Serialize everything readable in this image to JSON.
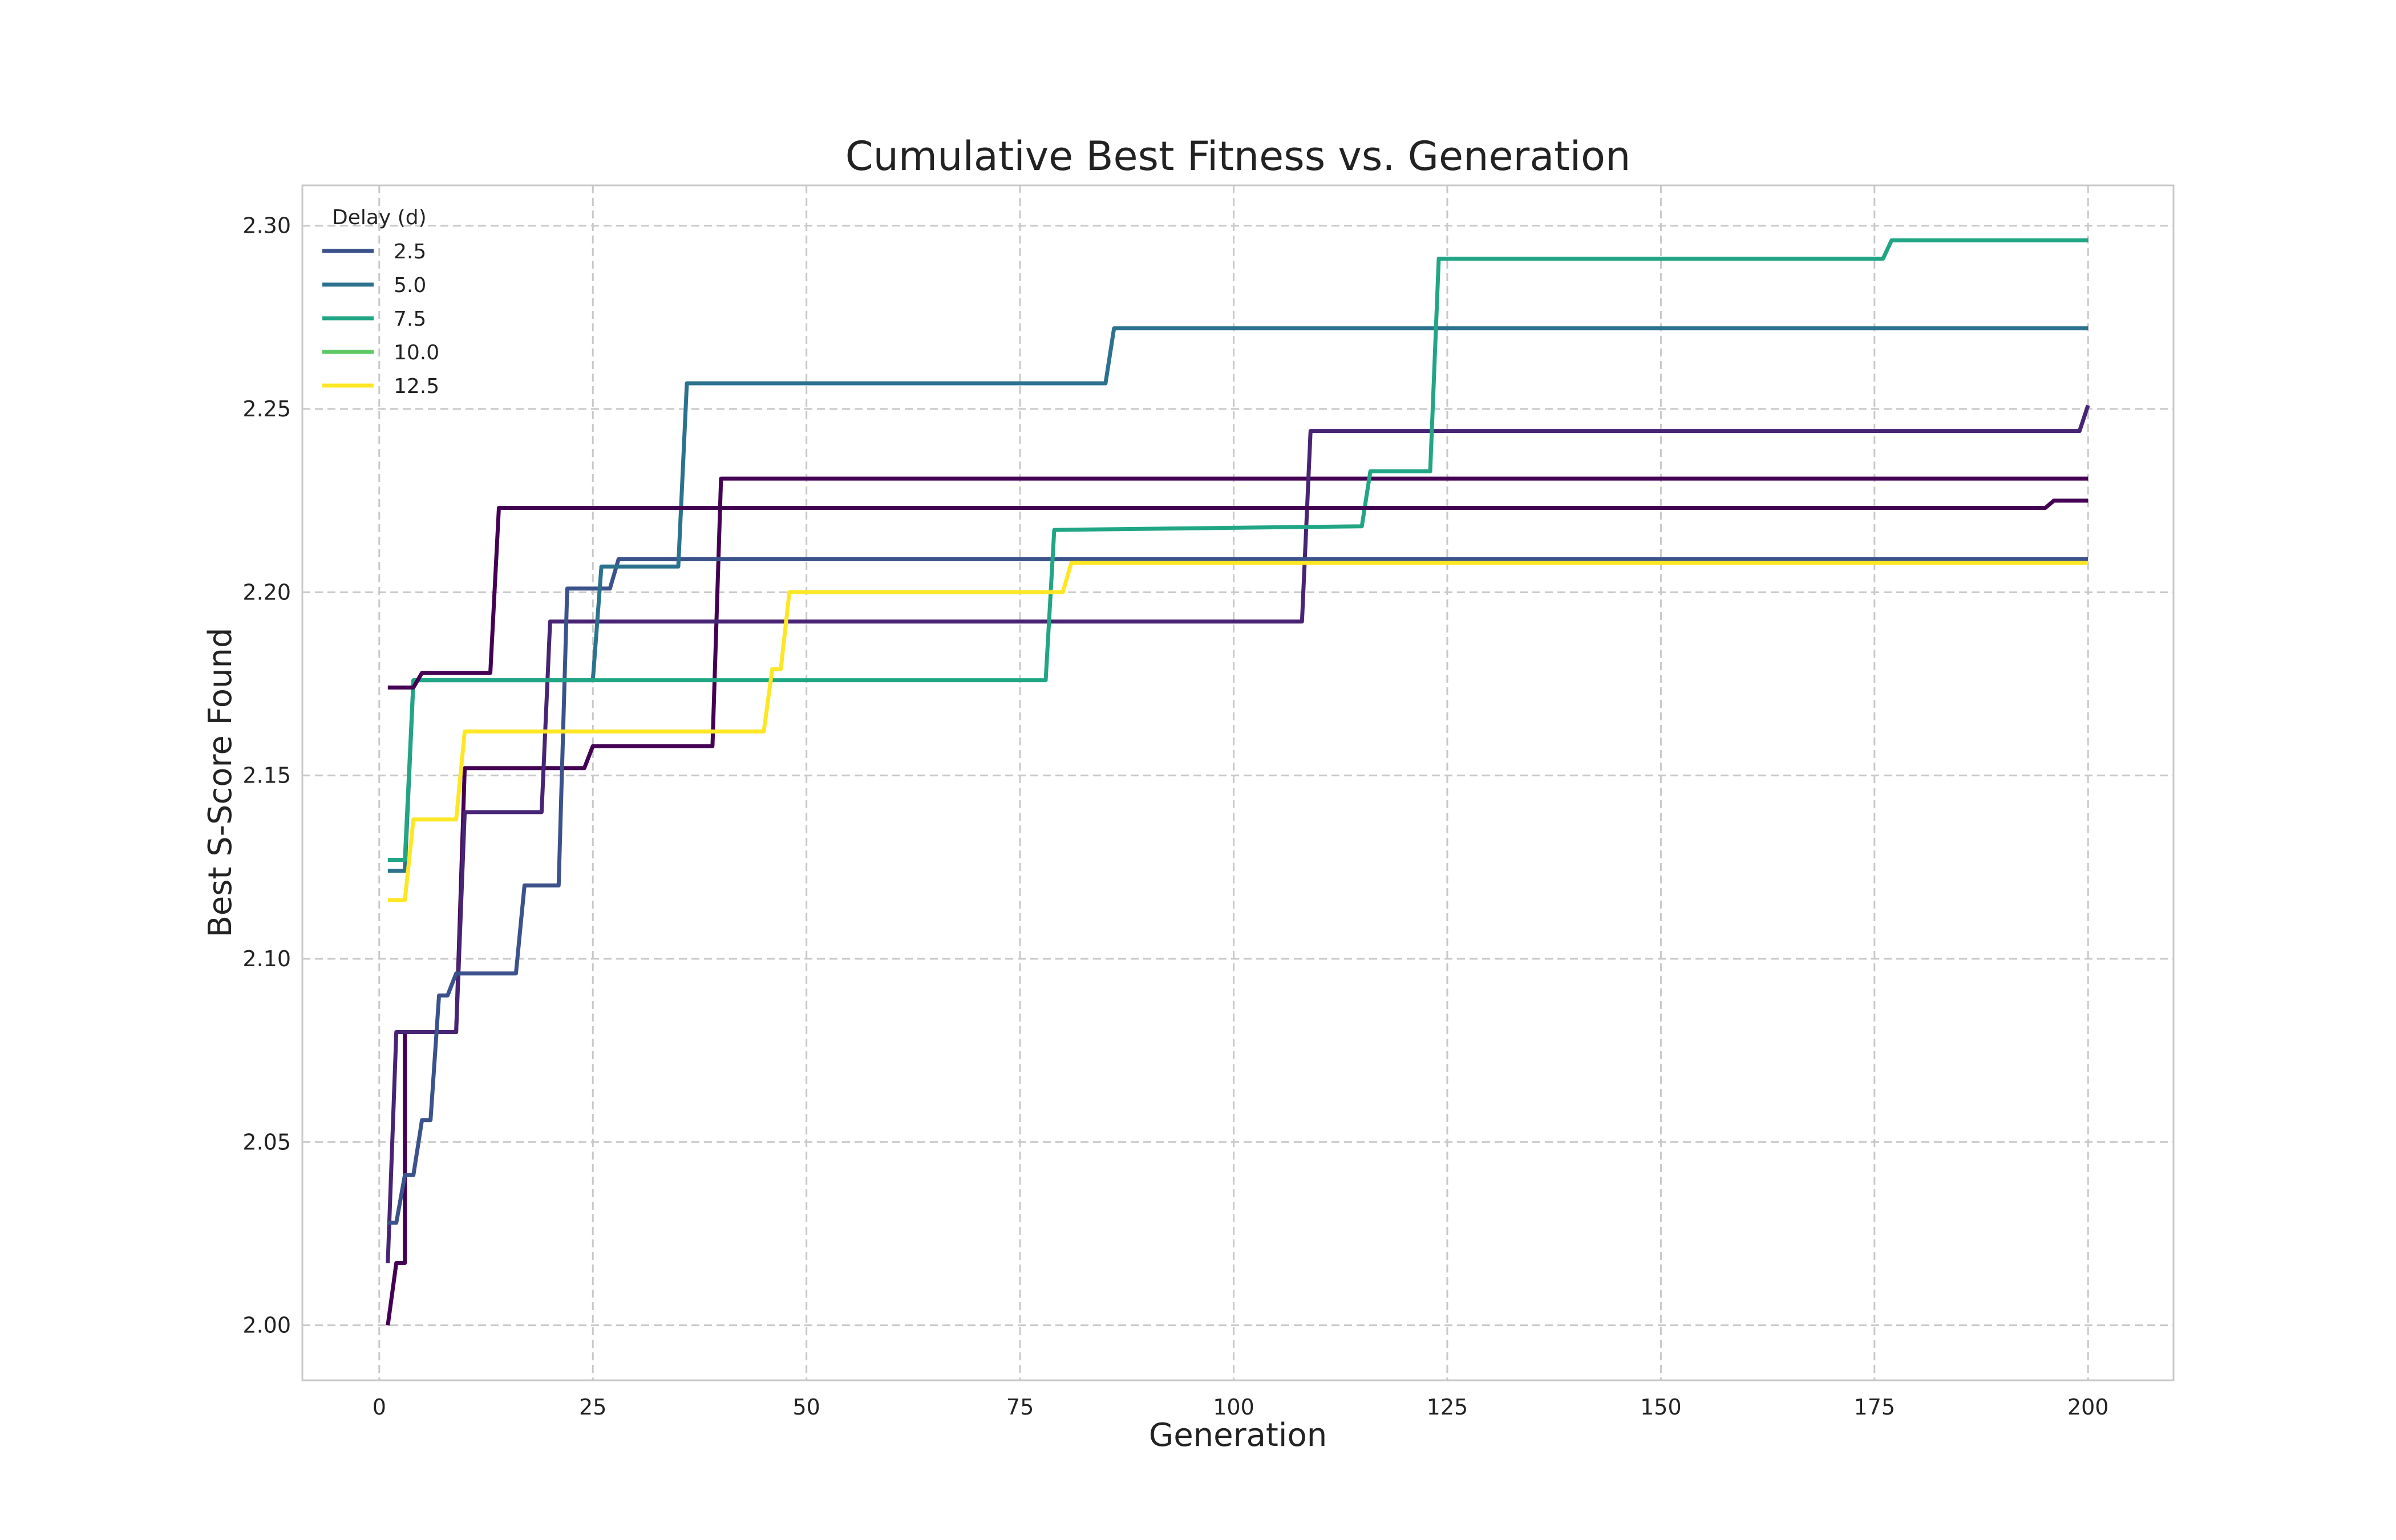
{
  "chart_data": {
    "type": "line",
    "title": "Cumulative Best Fitness vs. Generation",
    "xlabel": "Generation",
    "ylabel": "Best S-Score Found",
    "xlim": [
      -9,
      210
    ],
    "ylim": [
      1.985,
      2.311
    ],
    "xticks": [
      0,
      25,
      50,
      75,
      100,
      125,
      150,
      175,
      200
    ],
    "yticks": [
      2.0,
      2.05,
      2.1,
      2.15,
      2.2,
      2.25,
      2.3
    ],
    "grid": true,
    "legend": {
      "title": "Delay (d)",
      "placement": "top-left",
      "entries": [
        {
          "label": "2.5",
          "color": "#3b528b"
        },
        {
          "label": "5.0",
          "color": "#2c728e"
        },
        {
          "label": "7.5",
          "color": "#21a685"
        },
        {
          "label": "10.0",
          "color": "#5ec962"
        },
        {
          "label": "12.5",
          "color": "#fde725"
        }
      ]
    },
    "series": [
      {
        "color": "#440154",
        "points": [
          [
            1,
            2.0
          ],
          [
            2,
            2.017
          ],
          [
            3,
            2.017
          ],
          [
            3,
            2.08
          ],
          [
            9,
            2.08
          ],
          [
            10,
            2.152
          ],
          [
            24,
            2.152
          ],
          [
            25,
            2.158
          ],
          [
            39,
            2.158
          ],
          [
            40,
            2.231
          ],
          [
            200,
            2.231
          ]
        ]
      },
      {
        "color": "#482475",
        "points": [
          [
            1,
            2.017
          ],
          [
            2,
            2.08
          ],
          [
            9,
            2.08
          ],
          [
            10,
            2.14
          ],
          [
            19,
            2.14
          ],
          [
            20,
            2.192
          ],
          [
            108,
            2.192
          ],
          [
            109,
            2.244
          ],
          [
            199,
            2.244
          ],
          [
            200,
            2.251
          ]
        ]
      },
      {
        "color": "#3b528b",
        "points": [
          [
            1,
            2.028
          ],
          [
            2,
            2.028
          ],
          [
            3,
            2.041
          ],
          [
            4,
            2.041
          ],
          [
            5,
            2.056
          ],
          [
            6,
            2.056
          ],
          [
            7,
            2.09
          ],
          [
            8,
            2.09
          ],
          [
            9,
            2.096
          ],
          [
            16,
            2.096
          ],
          [
            17,
            2.12
          ],
          [
            21,
            2.12
          ],
          [
            22,
            2.201
          ],
          [
            27,
            2.201
          ],
          [
            28,
            2.209
          ],
          [
            200,
            2.209
          ]
        ]
      },
      {
        "color": "#2c728e",
        "points": [
          [
            1,
            2.124
          ],
          [
            3,
            2.124
          ],
          [
            4,
            2.176
          ],
          [
            25,
            2.176
          ],
          [
            26,
            2.207
          ],
          [
            35,
            2.207
          ],
          [
            36,
            2.257
          ],
          [
            85,
            2.257
          ],
          [
            86,
            2.272
          ],
          [
            200,
            2.272
          ]
        ]
      },
      {
        "color": "#21a685",
        "points": [
          [
            1,
            2.127
          ],
          [
            3,
            2.127
          ],
          [
            4,
            2.176
          ],
          [
            78,
            2.176
          ],
          [
            79,
            2.217
          ],
          [
            115,
            2.218
          ],
          [
            116,
            2.233
          ],
          [
            123,
            2.233
          ],
          [
            124,
            2.291
          ],
          [
            176,
            2.291
          ],
          [
            177,
            2.296
          ],
          [
            200,
            2.296
          ]
        ]
      },
      {
        "color": "#fde725",
        "points": [
          [
            1,
            2.116
          ],
          [
            3,
            2.116
          ],
          [
            4,
            2.138
          ],
          [
            9,
            2.138
          ],
          [
            10,
            2.162
          ],
          [
            45,
            2.162
          ],
          [
            46,
            2.179
          ],
          [
            47,
            2.179
          ],
          [
            48,
            2.2
          ],
          [
            80,
            2.2
          ],
          [
            81,
            2.208
          ],
          [
            200,
            2.208
          ]
        ]
      },
      {
        "color": "#440154",
        "points": [
          [
            1,
            2.174
          ],
          [
            4,
            2.174
          ],
          [
            5,
            2.178
          ],
          [
            13,
            2.178
          ],
          [
            14,
            2.223
          ],
          [
            195,
            2.223
          ],
          [
            196,
            2.225
          ],
          [
            200,
            2.225
          ]
        ]
      }
    ]
  }
}
